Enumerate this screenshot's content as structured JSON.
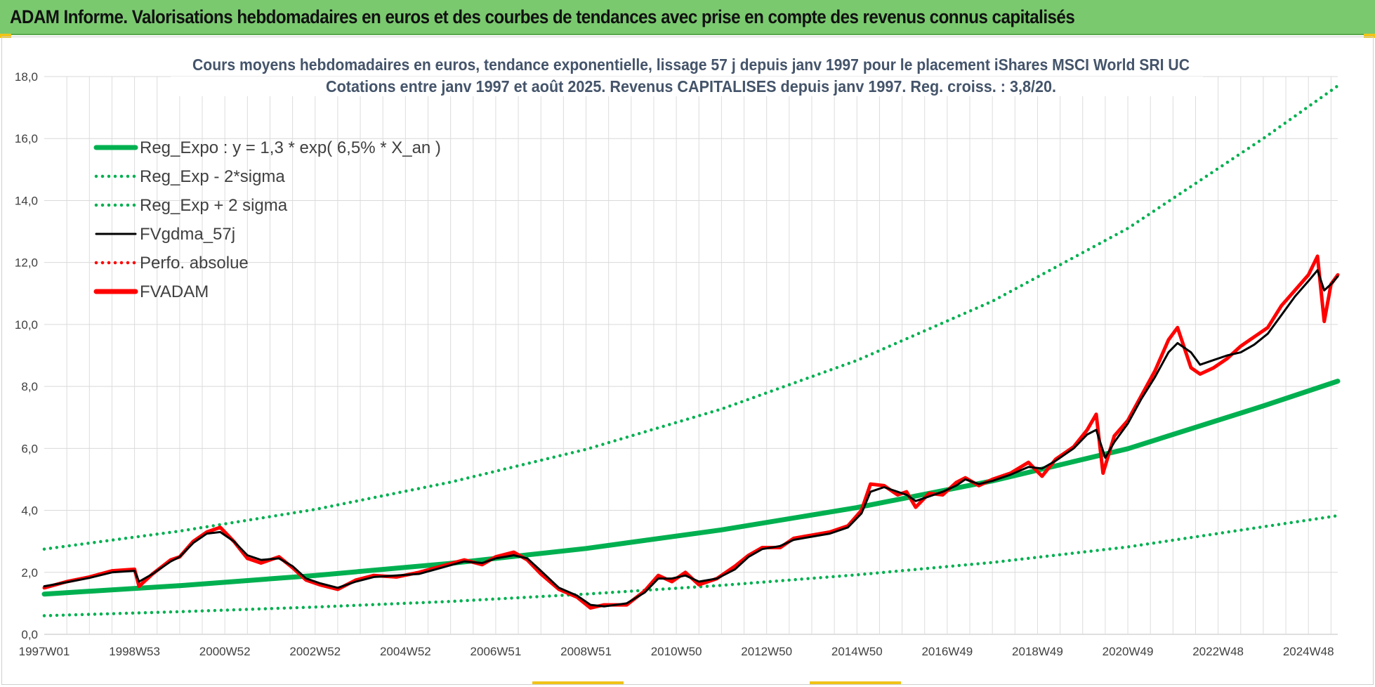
{
  "header": {
    "title": "ADAM Informe. Valorisations hebdomadaires en euros et des courbes de tendances avec prise en compte des revenus connus capitalisés"
  },
  "colors": {
    "header_bg": "#7ac96f",
    "reg_expo": "#00b050",
    "fvgdma": "#000000",
    "fvadam": "#ff0000",
    "grid": "#d9d9d9"
  },
  "chart_data": {
    "type": "line",
    "title_lines": [
      "Cours moyens hebdomadaires en euros, tendance exponentielle, lissage 57 j depuis janv 1997 pour le placement iShares MSCI World SRI UC",
      "Cotations entre janv 1997 et août 2025. Revenus CAPITALISES depuis janv 1997. Reg. croiss. : 3,8/20."
    ],
    "x_range": [
      1997.0,
      2025.65
    ],
    "ylim": [
      0,
      18
    ],
    "y_ticks": [
      "0,0",
      "2,0",
      "4,0",
      "6,0",
      "8,0",
      "10,0",
      "12,0",
      "14,0",
      "16,0",
      "18,0"
    ],
    "x_ticks": [
      {
        "label": "1997W01",
        "x": 1997.0
      },
      {
        "label": "1998W53",
        "x": 1999.0
      },
      {
        "label": "2000W52",
        "x": 2001.0
      },
      {
        "label": "2002W52",
        "x": 2003.0
      },
      {
        "label": "2004W52",
        "x": 2005.0
      },
      {
        "label": "2006W51",
        "x": 2007.0
      },
      {
        "label": "2008W51",
        "x": 2009.0
      },
      {
        "label": "2010W50",
        "x": 2011.0
      },
      {
        "label": "2012W50",
        "x": 2013.0
      },
      {
        "label": "2014W50",
        "x": 2015.0
      },
      {
        "label": "2016W49",
        "x": 2017.0
      },
      {
        "label": "2018W49",
        "x": 2019.0
      },
      {
        "label": "2020W49",
        "x": 2021.0
      },
      {
        "label": "2022W48",
        "x": 2023.0
      },
      {
        "label": "2024W48",
        "x": 2025.0
      }
    ],
    "grid": true,
    "legend_position": "top-left",
    "series": [
      {
        "name": "Reg_Expo : y = 1,3 * exp( 6,5% *  X_an )",
        "style": "solid-thick",
        "color": "#00b050",
        "points": [
          [
            1997.0,
            1.3
          ],
          [
            2000.0,
            1.57
          ],
          [
            2003.0,
            1.9
          ],
          [
            2006.0,
            2.29
          ],
          [
            2009.0,
            2.77
          ],
          [
            2012.0,
            3.37
          ],
          [
            2015.0,
            4.09
          ],
          [
            2018.0,
            4.95
          ],
          [
            2021.0,
            5.99
          ],
          [
            2024.0,
            7.37
          ],
          [
            2025.65,
            8.17
          ]
        ]
      },
      {
        "name": "Reg_Exp - 2*sigma",
        "style": "dotted",
        "color": "#00b050",
        "points": [
          [
            1997.0,
            0.6
          ],
          [
            2000.0,
            0.73
          ],
          [
            2003.0,
            0.88
          ],
          [
            2006.0,
            1.06
          ],
          [
            2009.0,
            1.3
          ],
          [
            2012.0,
            1.58
          ],
          [
            2015.0,
            1.92
          ],
          [
            2018.0,
            2.32
          ],
          [
            2021.0,
            2.82
          ],
          [
            2024.0,
            3.47
          ],
          [
            2025.65,
            3.83
          ]
        ]
      },
      {
        "name": "Reg_Exp + 2 sigma",
        "style": "dotted",
        "color": "#00b050",
        "points": [
          [
            1997.0,
            2.75
          ],
          [
            2000.0,
            3.33
          ],
          [
            2003.0,
            4.03
          ],
          [
            2006.0,
            4.91
          ],
          [
            2009.0,
            5.97
          ],
          [
            2012.0,
            7.27
          ],
          [
            2015.0,
            8.84
          ],
          [
            2018.0,
            10.75
          ],
          [
            2021.0,
            13.1
          ],
          [
            2024.0,
            16.0
          ],
          [
            2025.65,
            17.7
          ]
        ]
      },
      {
        "name": "FVgdma_57j",
        "style": "solid",
        "color": "#000000",
        "points": [
          [
            1997.0,
            1.55
          ],
          [
            1997.5,
            1.68
          ],
          [
            1998.0,
            1.82
          ],
          [
            1998.5,
            2.0
          ],
          [
            1999.0,
            2.05
          ],
          [
            1999.1,
            1.7
          ],
          [
            1999.4,
            1.95
          ],
          [
            1999.8,
            2.35
          ],
          [
            2000.0,
            2.5
          ],
          [
            2000.3,
            2.95
          ],
          [
            2000.6,
            3.25
          ],
          [
            2000.9,
            3.3
          ],
          [
            2001.2,
            3.0
          ],
          [
            2001.5,
            2.55
          ],
          [
            2001.8,
            2.4
          ],
          [
            2002.2,
            2.45
          ],
          [
            2002.5,
            2.2
          ],
          [
            2002.8,
            1.8
          ],
          [
            2003.1,
            1.65
          ],
          [
            2003.5,
            1.5
          ],
          [
            2003.9,
            1.7
          ],
          [
            2004.3,
            1.85
          ],
          [
            2004.8,
            1.9
          ],
          [
            2005.3,
            1.95
          ],
          [
            2005.8,
            2.15
          ],
          [
            2006.3,
            2.35
          ],
          [
            2006.7,
            2.3
          ],
          [
            2007.0,
            2.45
          ],
          [
            2007.4,
            2.55
          ],
          [
            2007.7,
            2.45
          ],
          [
            2008.0,
            2.05
          ],
          [
            2008.4,
            1.5
          ],
          [
            2008.8,
            1.25
          ],
          [
            2009.1,
            0.95
          ],
          [
            2009.4,
            0.9
          ],
          [
            2009.9,
            1.0
          ],
          [
            2010.3,
            1.35
          ],
          [
            2010.6,
            1.8
          ],
          [
            2010.9,
            1.8
          ],
          [
            2011.2,
            1.9
          ],
          [
            2011.5,
            1.7
          ],
          [
            2011.9,
            1.8
          ],
          [
            2012.3,
            2.1
          ],
          [
            2012.6,
            2.5
          ],
          [
            2012.9,
            2.75
          ],
          [
            2013.3,
            2.85
          ],
          [
            2013.6,
            3.05
          ],
          [
            2014.0,
            3.15
          ],
          [
            2014.4,
            3.25
          ],
          [
            2014.8,
            3.45
          ],
          [
            2015.1,
            3.9
          ],
          [
            2015.3,
            4.6
          ],
          [
            2015.6,
            4.75
          ],
          [
            2015.9,
            4.6
          ],
          [
            2016.1,
            4.5
          ],
          [
            2016.3,
            4.3
          ],
          [
            2016.6,
            4.45
          ],
          [
            2016.9,
            4.6
          ],
          [
            2017.2,
            4.8
          ],
          [
            2017.4,
            5.0
          ],
          [
            2017.7,
            4.85
          ],
          [
            2018.0,
            4.95
          ],
          [
            2018.4,
            5.15
          ],
          [
            2018.8,
            5.4
          ],
          [
            2019.1,
            5.35
          ],
          [
            2019.4,
            5.6
          ],
          [
            2019.8,
            6.0
          ],
          [
            2020.1,
            6.45
          ],
          [
            2020.3,
            6.6
          ],
          [
            2020.5,
            5.7
          ],
          [
            2020.7,
            6.2
          ],
          [
            2021.0,
            6.8
          ],
          [
            2021.3,
            7.6
          ],
          [
            2021.6,
            8.3
          ],
          [
            2021.9,
            9.1
          ],
          [
            2022.1,
            9.4
          ],
          [
            2022.4,
            9.1
          ],
          [
            2022.6,
            8.7
          ],
          [
            2022.9,
            8.85
          ],
          [
            2023.2,
            9.0
          ],
          [
            2023.5,
            9.1
          ],
          [
            2023.8,
            9.35
          ],
          [
            2024.1,
            9.7
          ],
          [
            2024.4,
            10.3
          ],
          [
            2024.7,
            10.9
          ],
          [
            2025.0,
            11.4
          ],
          [
            2025.2,
            11.75
          ],
          [
            2025.35,
            11.1
          ],
          [
            2025.5,
            11.3
          ],
          [
            2025.65,
            11.55
          ]
        ]
      },
      {
        "name": "Perfo. absolue",
        "style": "dotted",
        "color": "#ff0000",
        "points": []
      },
      {
        "name": "FVADAM",
        "style": "solid-thick",
        "color": "#ff0000",
        "points": [
          [
            1997.0,
            1.5
          ],
          [
            1997.5,
            1.7
          ],
          [
            1998.0,
            1.85
          ],
          [
            1998.5,
            2.05
          ],
          [
            1999.0,
            2.1
          ],
          [
            1999.1,
            1.55
          ],
          [
            1999.4,
            1.95
          ],
          [
            1999.8,
            2.4
          ],
          [
            2000.0,
            2.5
          ],
          [
            2000.3,
            3.0
          ],
          [
            2000.6,
            3.3
          ],
          [
            2000.9,
            3.45
          ],
          [
            2001.2,
            3.0
          ],
          [
            2001.5,
            2.45
          ],
          [
            2001.8,
            2.3
          ],
          [
            2002.2,
            2.5
          ],
          [
            2002.5,
            2.15
          ],
          [
            2002.8,
            1.75
          ],
          [
            2003.1,
            1.6
          ],
          [
            2003.5,
            1.45
          ],
          [
            2003.9,
            1.75
          ],
          [
            2004.3,
            1.9
          ],
          [
            2004.8,
            1.85
          ],
          [
            2005.3,
            2.0
          ],
          [
            2005.8,
            2.2
          ],
          [
            2006.3,
            2.4
          ],
          [
            2006.7,
            2.25
          ],
          [
            2007.0,
            2.5
          ],
          [
            2007.4,
            2.65
          ],
          [
            2007.7,
            2.4
          ],
          [
            2008.0,
            1.95
          ],
          [
            2008.4,
            1.45
          ],
          [
            2008.8,
            1.2
          ],
          [
            2009.1,
            0.85
          ],
          [
            2009.4,
            0.95
          ],
          [
            2009.9,
            0.95
          ],
          [
            2010.3,
            1.4
          ],
          [
            2010.6,
            1.9
          ],
          [
            2010.9,
            1.7
          ],
          [
            2011.2,
            2.0
          ],
          [
            2011.5,
            1.6
          ],
          [
            2011.9,
            1.8
          ],
          [
            2012.3,
            2.2
          ],
          [
            2012.6,
            2.55
          ],
          [
            2012.9,
            2.8
          ],
          [
            2013.3,
            2.8
          ],
          [
            2013.6,
            3.1
          ],
          [
            2014.0,
            3.2
          ],
          [
            2014.4,
            3.3
          ],
          [
            2014.8,
            3.5
          ],
          [
            2015.1,
            4.0
          ],
          [
            2015.3,
            4.85
          ],
          [
            2015.6,
            4.8
          ],
          [
            2015.9,
            4.5
          ],
          [
            2016.1,
            4.6
          ],
          [
            2016.3,
            4.1
          ],
          [
            2016.6,
            4.55
          ],
          [
            2016.9,
            4.5
          ],
          [
            2017.2,
            4.9
          ],
          [
            2017.4,
            5.05
          ],
          [
            2017.7,
            4.8
          ],
          [
            2018.0,
            5.0
          ],
          [
            2018.4,
            5.2
          ],
          [
            2018.8,
            5.55
          ],
          [
            2019.1,
            5.1
          ],
          [
            2019.4,
            5.65
          ],
          [
            2019.8,
            6.05
          ],
          [
            2020.1,
            6.6
          ],
          [
            2020.3,
            7.1
          ],
          [
            2020.45,
            5.2
          ],
          [
            2020.7,
            6.4
          ],
          [
            2021.0,
            6.9
          ],
          [
            2021.3,
            7.7
          ],
          [
            2021.6,
            8.5
          ],
          [
            2021.9,
            9.5
          ],
          [
            2022.1,
            9.9
          ],
          [
            2022.4,
            8.6
          ],
          [
            2022.6,
            8.4
          ],
          [
            2022.9,
            8.6
          ],
          [
            2023.2,
            8.9
          ],
          [
            2023.5,
            9.3
          ],
          [
            2023.8,
            9.6
          ],
          [
            2024.1,
            9.9
          ],
          [
            2024.4,
            10.6
          ],
          [
            2024.7,
            11.1
          ],
          [
            2025.0,
            11.6
          ],
          [
            2025.2,
            12.2
          ],
          [
            2025.35,
            10.1
          ],
          [
            2025.5,
            11.3
          ],
          [
            2025.65,
            11.6
          ]
        ]
      }
    ]
  }
}
